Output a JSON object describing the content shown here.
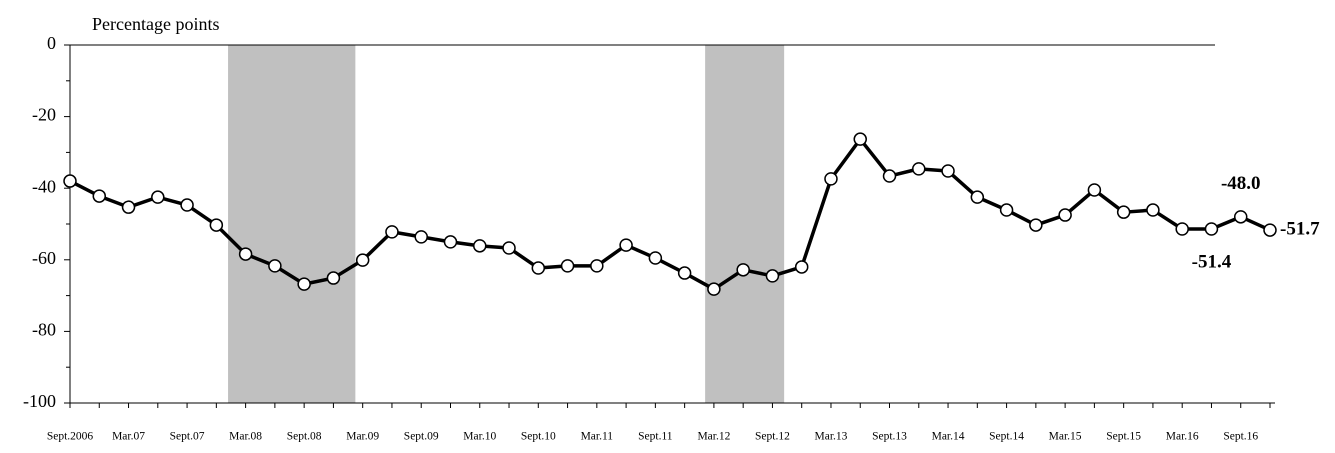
{
  "chart_data": {
    "type": "line",
    "y_axis_label": "Percentage points",
    "categories": [
      "Sept.2006",
      null,
      "Mar.07",
      null,
      "Sept.07",
      null,
      "Mar.08",
      null,
      "Sept.08",
      null,
      "Mar.09",
      null,
      "Sept.09",
      null,
      "Mar.10",
      null,
      "Sept.10",
      null,
      "Mar.11",
      null,
      "Sept.11",
      null,
      "Mar.12",
      null,
      "Sept.12",
      null,
      "Mar.13",
      null,
      "Sept.13",
      null,
      "Mar.14",
      null,
      "Sept.14",
      null,
      "Mar.15",
      null,
      "Sept.15",
      null,
      "Mar.16",
      null,
      "Sept.16",
      null
    ],
    "series": [
      {
        "color": "#000000",
        "values": [
          -38,
          -42.2,
          -45.3,
          -42.5,
          -44.7,
          -50.3,
          -58.4,
          -61.7,
          -66.8,
          -65.1,
          -60.1,
          -52.2,
          -53.6,
          -55,
          -56.1,
          -56.7,
          -62.3,
          -61.7,
          -61.7,
          -55.9,
          -59.5,
          -63.7,
          -68.2,
          -62.8,
          -64.5,
          -62,
          -37.4,
          -26.3,
          -36.6,
          -34.6,
          -35.2,
          -42.5,
          -46.1,
          -50.3,
          -47.5,
          -40.5,
          -46.7,
          -46.1,
          -51.4,
          -51.4,
          -48.0,
          -51.7
        ],
        "value_labels": [
          null,
          null,
          null,
          null,
          null,
          null,
          null,
          null,
          null,
          null,
          null,
          null,
          null,
          null,
          null,
          null,
          null,
          null,
          null,
          null,
          null,
          null,
          null,
          null,
          null,
          null,
          null,
          null,
          null,
          null,
          null,
          null,
          null,
          null,
          null,
          null,
          null,
          null,
          null,
          "-51.4",
          "-48.0",
          "-51.7"
        ]
      }
    ],
    "shaded_ranges": [
      [
        5.4,
        9.75
      ],
      [
        21.7,
        24.4
      ]
    ],
    "shade_color": "#c0c0c0",
    "ylim": [
      -100,
      0
    ],
    "yticks": [
      0,
      -20,
      -40,
      -60,
      -80,
      -100
    ]
  }
}
